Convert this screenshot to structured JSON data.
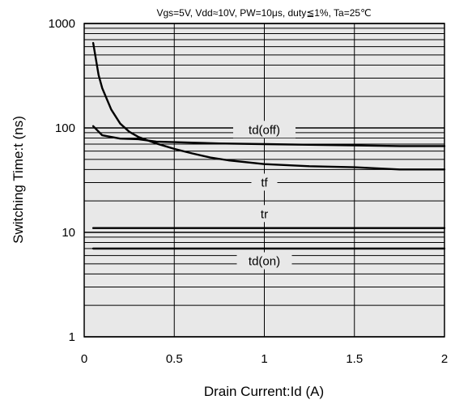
{
  "chart_data": {
    "type": "line",
    "title": "",
    "conditions": "Vgs=5V, Vdd≈10V, PW=10μs, duty≦1%, Ta=25℃",
    "xlabel": "Drain Current:Id  (A)",
    "ylabel": "Switching Time:t  (ns)",
    "xlim": [
      0,
      2
    ],
    "ylim": [
      1,
      1000
    ],
    "yscale": "log",
    "grid": true,
    "background": "#e8e8e8",
    "x_ticks": [
      {
        "value": 0,
        "label": "0"
      },
      {
        "value": 0.5,
        "label": "0.5"
      },
      {
        "value": 1,
        "label": "1"
      },
      {
        "value": 1.5,
        "label": "1.5"
      },
      {
        "value": 2,
        "label": "2"
      }
    ],
    "y_ticks": [
      {
        "value": 1,
        "label": "1"
      },
      {
        "value": 10,
        "label": "10"
      },
      {
        "value": 100,
        "label": "100"
      },
      {
        "value": 1000,
        "label": "1000"
      }
    ],
    "series": [
      {
        "name": "td(off)",
        "label_at": {
          "x": 1.0,
          "y": 96
        },
        "x": [
          0.05,
          0.1,
          0.2,
          0.3,
          0.4,
          0.5,
          0.75,
          1.0,
          1.25,
          1.5,
          1.75,
          2.0
        ],
        "y": [
          104,
          85,
          79,
          78,
          74,
          73,
          71,
          70,
          69,
          68,
          67,
          67
        ]
      },
      {
        "name": "tf",
        "label_at": {
          "x": 1.0,
          "y": 30
        },
        "x": [
          0.05,
          0.08,
          0.1,
          0.15,
          0.2,
          0.25,
          0.3,
          0.4,
          0.5,
          0.6,
          0.7,
          0.8,
          1.0,
          1.25,
          1.5,
          1.75,
          2.0
        ],
        "y": [
          650,
          320,
          240,
          150,
          110,
          92,
          82,
          71,
          63,
          57,
          52,
          49,
          45,
          43,
          42,
          40,
          40
        ]
      },
      {
        "name": "tr",
        "label_at": {
          "x": 1.0,
          "y": 15
        },
        "x": [
          0.05,
          2.0
        ],
        "y": [
          11,
          11
        ]
      },
      {
        "name": "td(on)",
        "label_at": {
          "x": 1.0,
          "y": 5.3
        },
        "x": [
          0.05,
          2.0
        ],
        "y": [
          7,
          7
        ]
      }
    ]
  }
}
